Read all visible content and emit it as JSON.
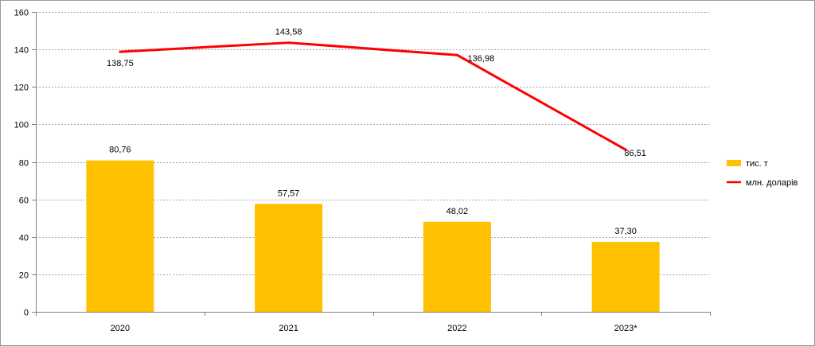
{
  "chart_data": {
    "type": "bar",
    "categories": [
      "2020",
      "2021",
      "2022",
      "2023*"
    ],
    "series": [
      {
        "name": "тис. т",
        "kind": "bar",
        "values": [
          80.76,
          57.57,
          48.02,
          37.3
        ],
        "labels": [
          "80,76",
          "57,57",
          "48,02",
          "37,30"
        ],
        "color": "#FFC000"
      },
      {
        "name": "млн. доларів",
        "kind": "line",
        "values": [
          138.75,
          143.58,
          136.98,
          86.51
        ],
        "labels": [
          "138,75",
          "143,58",
          "136,98",
          "86,51"
        ],
        "color": "#FF0000"
      }
    ],
    "ylim": [
      0,
      160
    ],
    "yticks": [
      0,
      20,
      40,
      60,
      80,
      100,
      120,
      140,
      160
    ],
    "grid": "horizontal dashed",
    "legend": "right",
    "title": "",
    "xlabel": "",
    "ylabel": ""
  }
}
